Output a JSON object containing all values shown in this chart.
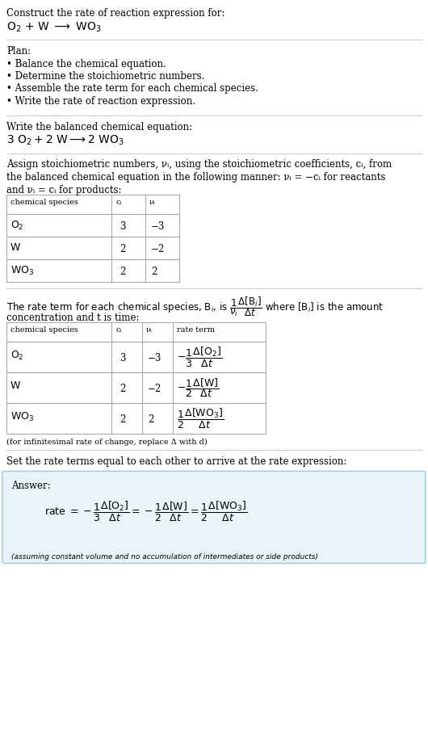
{
  "title_line1": "Construct the rate of reaction expression for:",
  "plan_header": "Plan:",
  "plan_items": [
    "• Balance the chemical equation.",
    "• Determine the stoichiometric numbers.",
    "• Assemble the rate term for each chemical species.",
    "• Write the rate of reaction expression."
  ],
  "balanced_header": "Write the balanced chemical equation:",
  "stoich_line1": "Assign stoichiometric numbers, νᵢ, using the stoichiometric coefficients, cᵢ, from",
  "stoich_line2": "the balanced chemical equation in the following manner: νᵢ = −cᵢ for reactants",
  "stoich_line3": "and νᵢ = cᵢ for products:",
  "rate_line1": "The rate term for each chemical species, Bᵢ, is ",
  "rate_line2": "where [Bᵢ] is the amount",
  "rate_line3": "concentration and t is time:",
  "infinitesimal_note": "(for infinitesimal rate of change, replace Δ with d)",
  "set_equal_text": "Set the rate terms equal to each other to arrive at the rate expression:",
  "answer_label": "Answer:",
  "answer_box_color": "#e8f4f8",
  "answer_box_border": "#a8cfe0",
  "assuming_note": "(assuming constant volume and no accumulation of intermediates or side products)",
  "bg_color": "#ffffff",
  "text_color": "#000000",
  "table_border_color": "#aaaaaa",
  "hline_color": "#cccccc"
}
